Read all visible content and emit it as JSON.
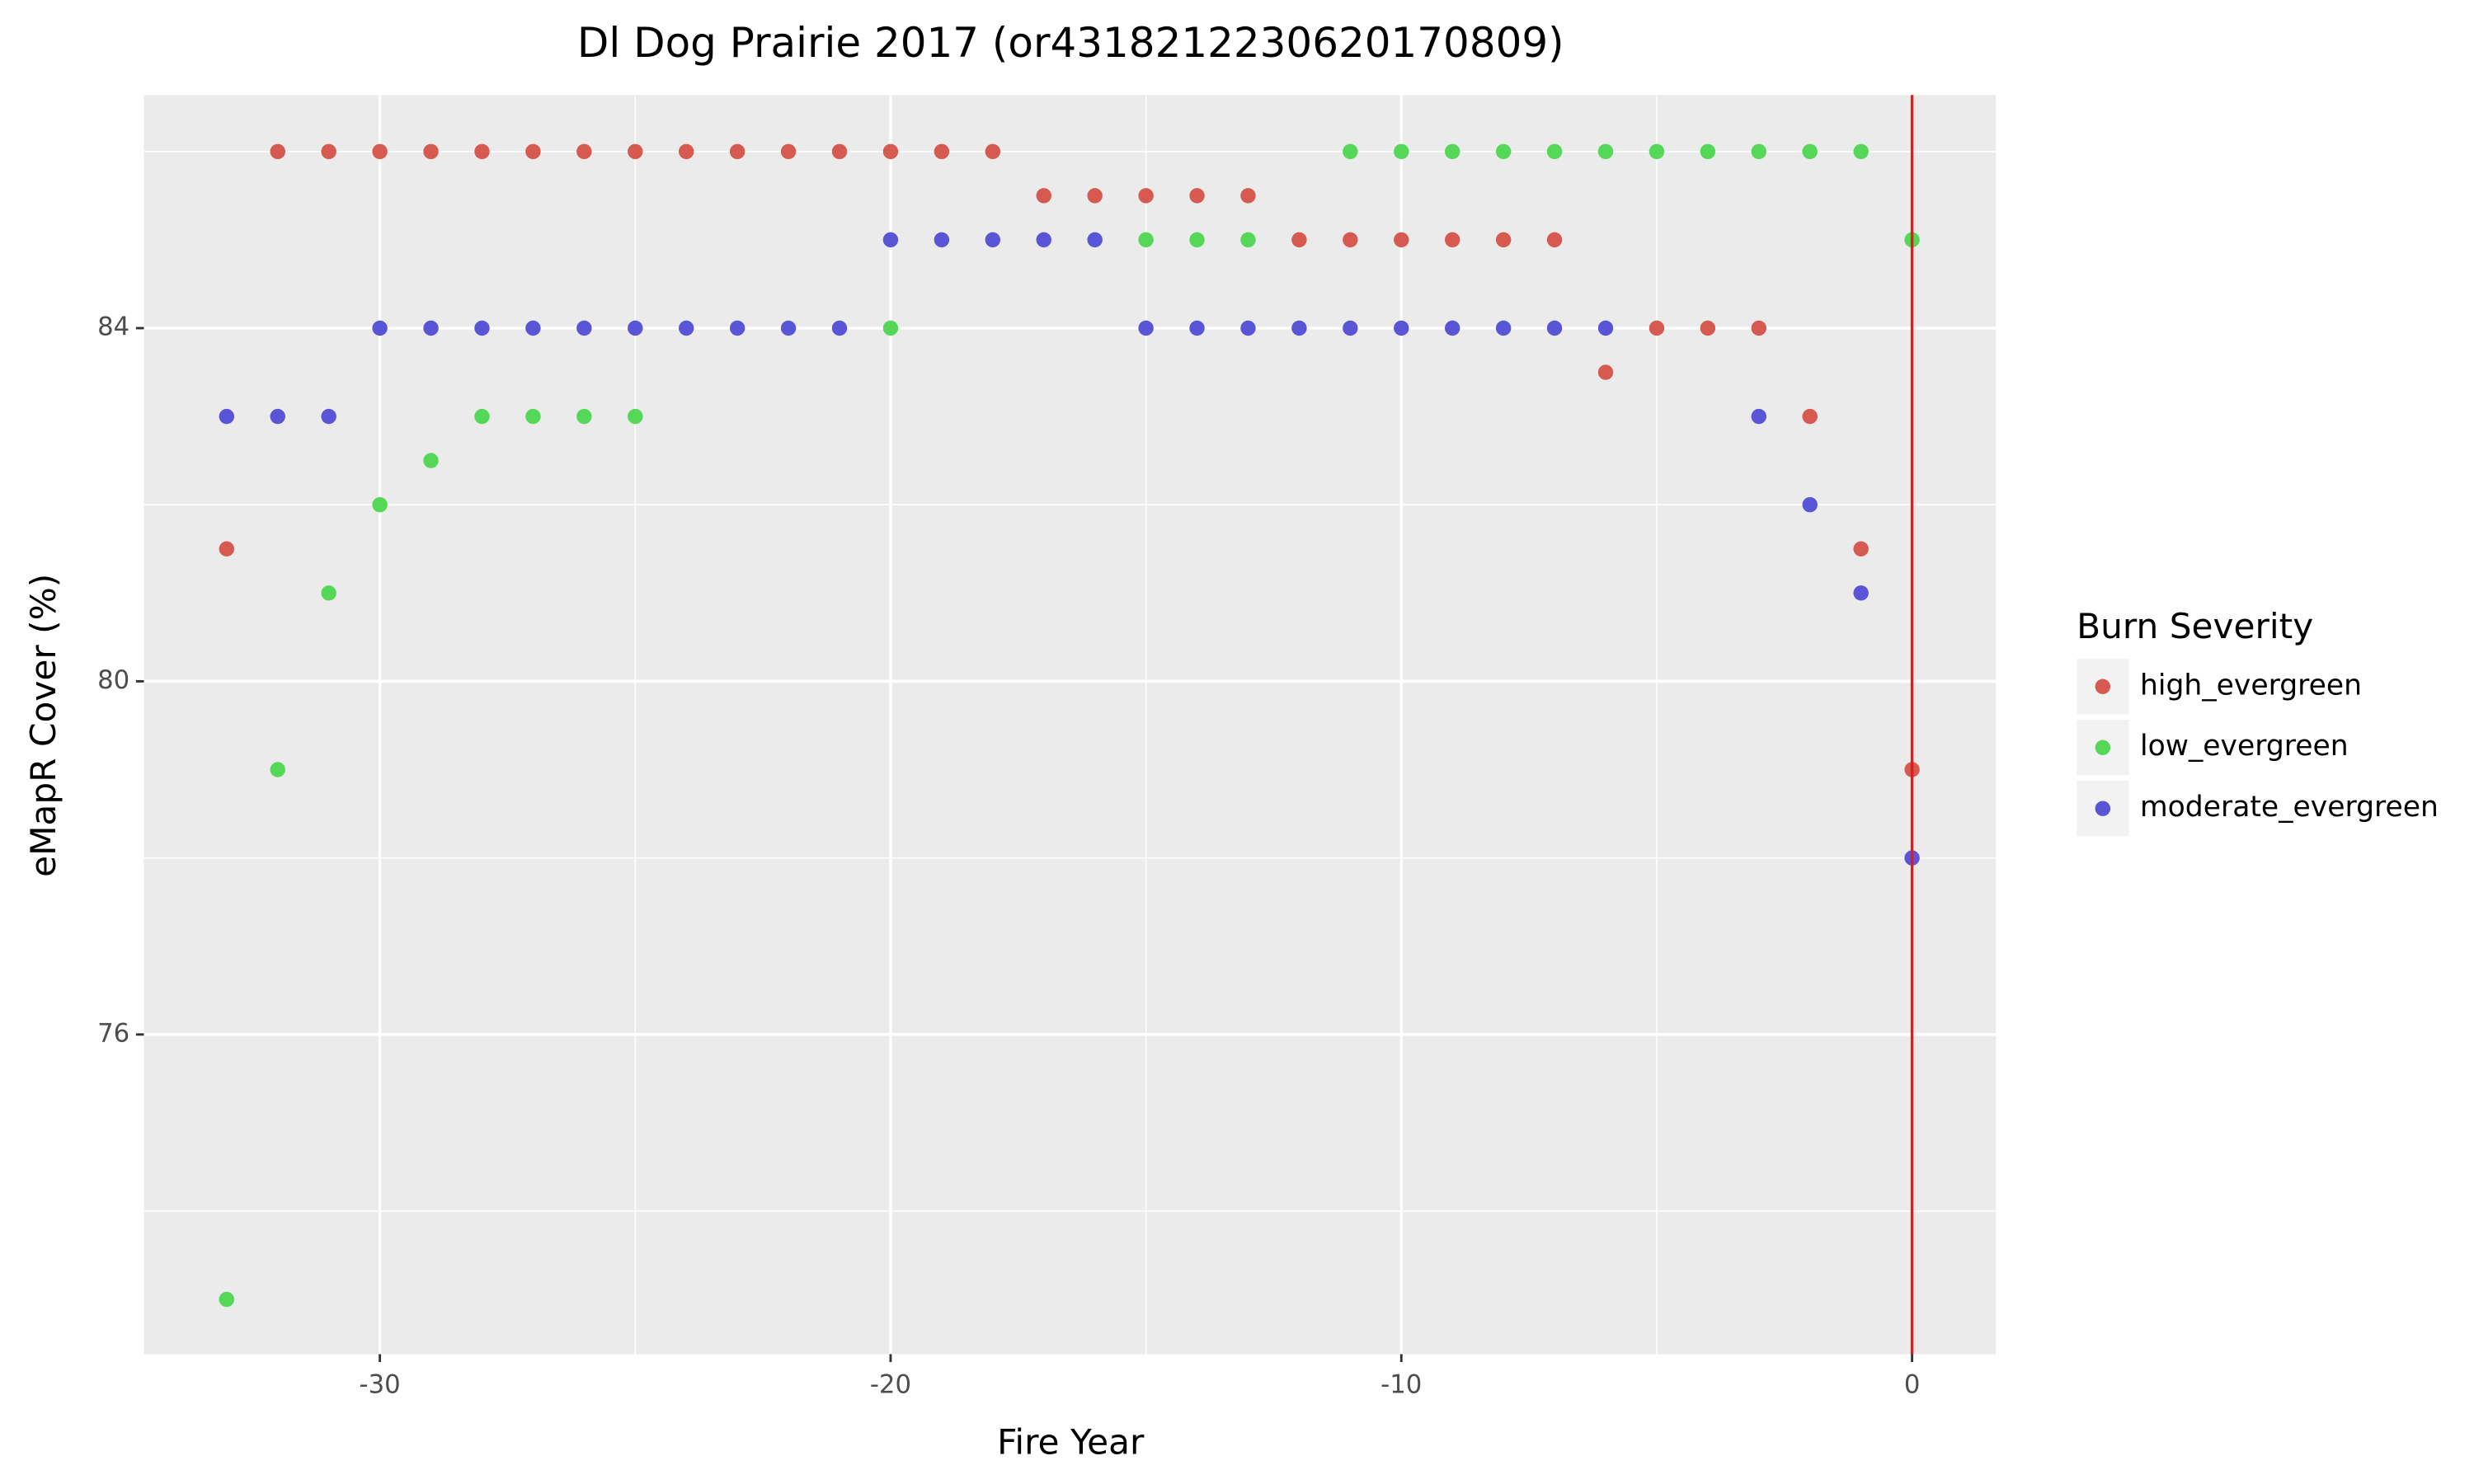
{
  "chart_data": {
    "type": "scatter",
    "title": "Dl Dog Prairie 2017 (or4318212230620170809)",
    "x_label": "Fire Year",
    "y_label": "eMapR Cover (%)",
    "legend_title": "Burn Severity",
    "xlim": [
      -34.62,
      1.64
    ],
    "ylim": [
      72.38,
      86.64
    ],
    "xticks": [
      -30,
      -20,
      -10,
      0
    ],
    "yticks": [
      76,
      80,
      84
    ],
    "x_minor_ticks": [
      -25,
      -15,
      -5
    ],
    "y_minor_ticks": [
      74,
      78,
      82,
      86
    ],
    "grid": true,
    "legend_position": "right",
    "vline_x": 0,
    "vline_color": "#e41a1c",
    "series": [
      {
        "name": "high_evergreen",
        "color": "#d65a50",
        "x": [
          -33,
          -32,
          -31,
          -30,
          -29,
          -28,
          -27,
          -26,
          -25,
          -24,
          -23,
          -22,
          -21,
          -20,
          -19,
          -18,
          -17,
          -16,
          -15,
          -14,
          -13,
          -12,
          -11,
          -10,
          -9,
          -8,
          -7,
          -6,
          -5,
          -4,
          -3,
          -2,
          -1,
          0
        ],
        "values": [
          81.5,
          86,
          86,
          86,
          86,
          86,
          86,
          86,
          86,
          86,
          86,
          86,
          86,
          86,
          86,
          86,
          85.5,
          85.5,
          85.5,
          85.5,
          85.5,
          85,
          85,
          85,
          85,
          85,
          85,
          83.5,
          84,
          84,
          84,
          83,
          81.5,
          79
        ]
      },
      {
        "name": "low_evergreen",
        "color": "#55d858",
        "x": [
          -33,
          -32,
          -31,
          -30,
          -29,
          -28,
          -27,
          -26,
          -25,
          -20,
          -15,
          -14,
          -13,
          -11,
          -10,
          -9,
          -8,
          -7,
          -6,
          -5,
          -4,
          -3,
          -2,
          -1,
          0
        ],
        "values": [
          73,
          79,
          81,
          82,
          82.5,
          83,
          83,
          83,
          83,
          84,
          85,
          85,
          85,
          86,
          86,
          86,
          86,
          86,
          86,
          86,
          86,
          86,
          86,
          86,
          85
        ]
      },
      {
        "name": "moderate_evergreen",
        "color": "#5a55d6",
        "x": [
          -33,
          -32,
          -31,
          -30,
          -29,
          -28,
          -27,
          -26,
          -25,
          -24,
          -23,
          -22,
          -21,
          -20,
          -19,
          -18,
          -17,
          -16,
          -15,
          -14,
          -13,
          -12,
          -11,
          -10,
          -9,
          -8,
          -7,
          -6,
          -3,
          -2,
          -1,
          0
        ],
        "values": [
          83,
          83,
          83,
          84,
          84,
          84,
          84,
          84,
          84,
          84,
          84,
          84,
          84,
          85,
          85,
          85,
          85,
          85,
          84,
          84,
          84,
          84,
          84,
          84,
          84,
          84,
          84,
          84,
          83,
          82,
          81,
          78
        ]
      }
    ]
  }
}
